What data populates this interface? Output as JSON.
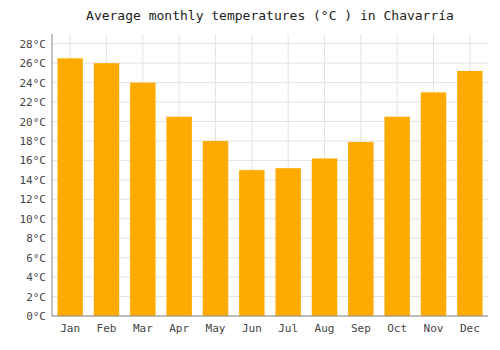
{
  "chart_data": {
    "type": "bar",
    "title": "Average monthly temperatures (°C ) in Chavarrí­a",
    "categories": [
      "Jan",
      "Feb",
      "Mar",
      "Apr",
      "May",
      "Jun",
      "Jul",
      "Aug",
      "Sep",
      "Oct",
      "Nov",
      "Dec"
    ],
    "values": [
      26.5,
      26.0,
      24.0,
      20.5,
      18.0,
      15.0,
      15.2,
      16.2,
      17.9,
      20.5,
      23.0,
      25.2
    ],
    "color": "#FFAA00",
    "ylim": [
      0,
      29
    ],
    "yticks": [
      {
        "value": 0,
        "label": "0°C"
      },
      {
        "value": 2,
        "label": "2°C"
      },
      {
        "value": 4,
        "label": "4°C"
      },
      {
        "value": 6,
        "label": "6°C"
      },
      {
        "value": 8,
        "label": "8°C"
      },
      {
        "value": 10,
        "label": "10°C"
      },
      {
        "value": 12,
        "label": "12°C"
      },
      {
        "value": 14,
        "label": "14°C"
      },
      {
        "value": 16,
        "label": "16°C"
      },
      {
        "value": 18,
        "label": "18°C"
      },
      {
        "value": 20,
        "label": "20°C"
      },
      {
        "value": 22,
        "label": "22°C"
      },
      {
        "value": 24,
        "label": "24°C"
      },
      {
        "value": 26,
        "label": "26°C"
      },
      {
        "value": 28,
        "label": "28°C"
      }
    ],
    "grid": true
  }
}
